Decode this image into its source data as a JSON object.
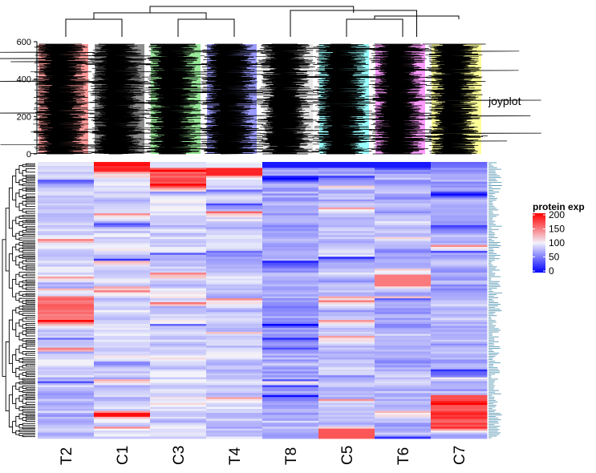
{
  "chart_data": {
    "type": "heatmap",
    "columns": [
      "T2",
      "C1",
      "C3",
      "T4",
      "T8",
      "C5",
      "T6",
      "C7"
    ],
    "column_colors": [
      "#ff9a9a",
      "#8c8c8c",
      "#99e899",
      "#9a9aff",
      "#e6e6e6",
      "#99ffff",
      "#ff9aff",
      "#ffff9a"
    ],
    "joyplot": {
      "label": "joyplot",
      "y_axis": {
        "range": [
          0,
          600
        ],
        "ticks": [
          0,
          200,
          400,
          600
        ]
      }
    },
    "legend": {
      "title": "protein exp",
      "ticks": [
        200,
        150,
        100,
        50,
        0
      ],
      "range": [
        0,
        200
      ],
      "colors": {
        "low": "#0000ff",
        "mid": "#f5f5fa",
        "high": "#ff0000"
      }
    },
    "n_rows": 600,
    "clustering": {
      "rows": true,
      "columns": true
    }
  }
}
